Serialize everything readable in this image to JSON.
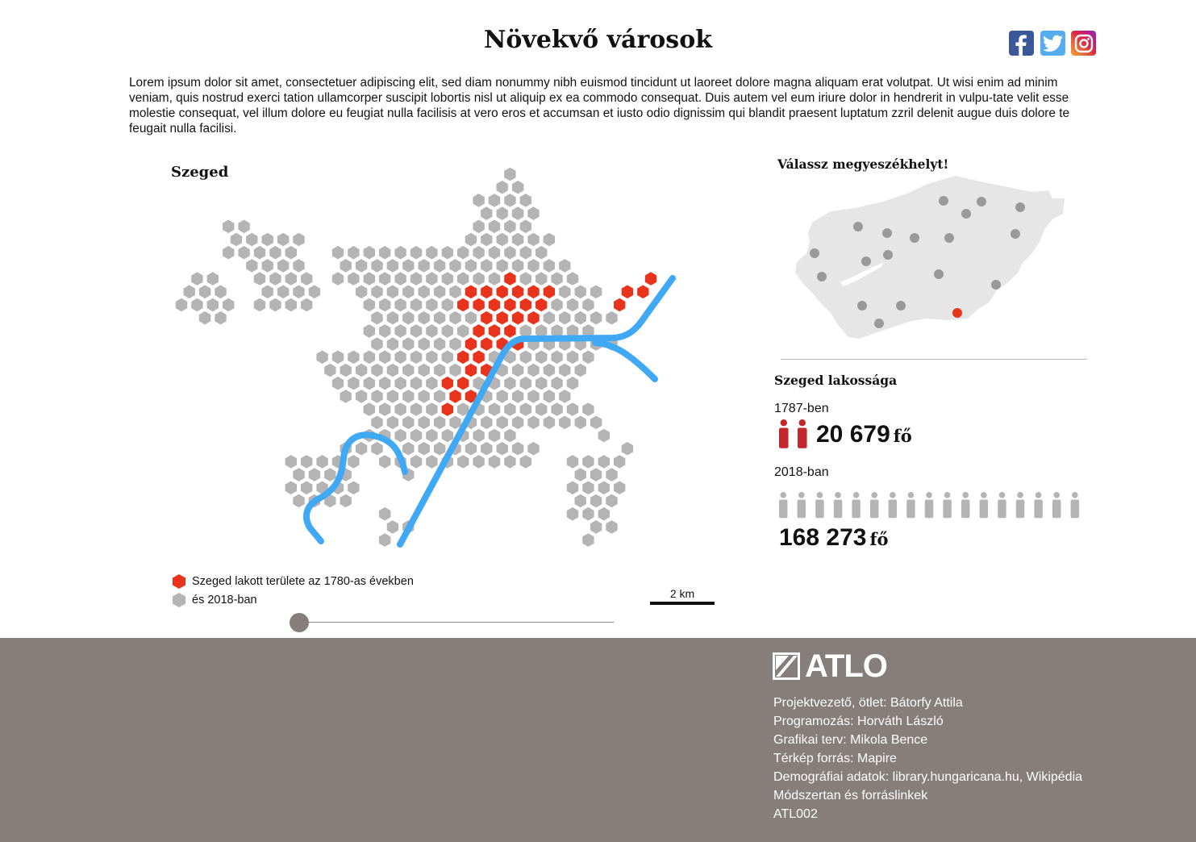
{
  "header": {
    "title": "Növekvő városok",
    "social": [
      {
        "name": "facebook-icon",
        "label": "f"
      },
      {
        "name": "twitter-icon",
        "label": ""
      },
      {
        "name": "instagram-icon",
        "label": ""
      }
    ]
  },
  "intro": "Lorem ipsum dolor sit amet, consectetuer adipiscing elit, sed diam nonummy nibh euismod tincidunt ut laoreet dolore magna aliquam erat volutpat. Ut wisi enim ad minim veniam, quis nostrud exerci tation ullamcorper suscipit lobortis nisl ut aliquip ex ea commodo consequat. Duis autem vel eum iriure dolor in hendrerit in vulpu-tate velit esse molestie consequat, vel illum dolore eu feugiat nulla facilisis at vero eros et accumsan et iusto odio dignissim qui blandit praesent luptatum zzril delenit augue duis dolore te feugait nulla facilisi.",
  "map": {
    "city": "Szeged",
    "legend": {
      "old": "Szeged lakott területe az 1780-as években",
      "new": "és 2018-ban"
    },
    "scale": "2 km",
    "colors": {
      "old": "#e8341c",
      "new": "#b4b4b4",
      "river": "#3fa9f5"
    },
    "timeline_position": 0
  },
  "county_map": {
    "heading": "Válassz megyeszékhelyt!",
    "selected": "Szeged",
    "colors": {
      "country": "#e6e6e6",
      "dot": "#999999",
      "selected": "#e8341c"
    }
  },
  "population": {
    "heading": "Szeged lakossága",
    "first": {
      "year": "1787-ben",
      "value": "20 679",
      "unit": "fő",
      "icons": 2,
      "color": "#c1272d"
    },
    "second": {
      "year": "2018-ban",
      "value": "168 273",
      "unit": "fő",
      "icons": 17,
      "color": "#b4b4b4"
    }
  },
  "footer": {
    "logo": "ATLO",
    "credits": [
      "Projektvezető, ötlet: Bátorfy Attila",
      "Programozás: Horváth László",
      "Grafikai terv: Mikola Bence",
      "Térkép forrás: Mapire",
      "Demográfiai adatok: library.hungaricana.hu, Wikipédia",
      "Módszertan és forráslinkek",
      "ATL002"
    ]
  }
}
